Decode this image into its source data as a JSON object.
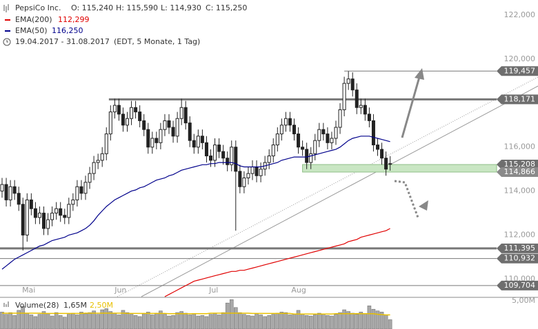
{
  "chart_data": {
    "type": "candlestick",
    "title": "PepsiCo Inc.",
    "ohlc_text": [
      "O: 115,240",
      "H: 115,590",
      "L: 114,930",
      "C: 115,250"
    ],
    "period": "19.04.2017 - 31.08.2017",
    "period_note": "(EDT, 5 Monate, 1 Tag)",
    "ylim": [
      109.2,
      122.69
    ],
    "yticks": [
      {
        "value": 110,
        "label": "110,000"
      },
      {
        "value": 112,
        "label": "112,000"
      },
      {
        "value": 114,
        "label": "114,000"
      },
      {
        "value": 116,
        "label": "116,000"
      },
      {
        "value": 120,
        "label": "120,000"
      },
      {
        "value": 122,
        "label": "122,000"
      }
    ],
    "xticks": [
      {
        "value": 6.4,
        "label": "Mai"
      },
      {
        "value": 28.4,
        "label": "Jun"
      },
      {
        "value": 50.7,
        "label": "Jul"
      },
      {
        "value": 71.1,
        "label": "Aug"
      }
    ],
    "open": [
      114.0,
      114.3,
      113.6,
      114.2,
      113.9,
      113.4,
      112.0,
      113.6,
      113.2,
      112.8,
      113.0,
      112.3,
      112.7,
      113.0,
      113.2,
      112.9,
      112.8,
      113.4,
      113.6,
      114.2,
      113.9,
      114.4,
      114.8,
      115.3,
      115.4,
      115.7,
      116.6,
      117.6,
      117.9,
      117.5,
      117.0,
      117.3,
      117.8,
      117.6,
      117.2,
      116.8,
      116.0,
      116.4,
      116.2,
      116.8,
      117.2,
      116.9,
      116.5,
      117.3,
      117.8,
      117.1,
      116.3,
      116.0,
      116.5,
      116.2,
      115.6,
      115.4,
      116.1,
      115.8,
      115.5,
      115.2,
      116.0,
      114.9,
      114.2,
      114.6,
      114.8,
      115.1,
      114.7,
      115.0,
      115.3,
      115.6,
      116.1,
      116.6,
      117.0,
      117.3,
      117.0,
      116.6,
      116.0,
      115.9,
      115.3,
      115.7,
      116.3,
      116.8,
      116.6,
      116.2,
      116.4,
      116.9,
      117.7,
      118.9,
      119.1,
      118.6,
      117.8,
      117.9,
      117.5,
      117.2,
      116.1,
      115.9,
      115.5,
      115.24
    ],
    "high": [
      114.6,
      114.6,
      114.5,
      114.5,
      114.2,
      113.7,
      113.9,
      113.9,
      113.5,
      113.3,
      113.3,
      113.0,
      113.3,
      113.5,
      113.5,
      113.2,
      113.7,
      113.9,
      114.5,
      114.5,
      114.7,
      115.1,
      115.6,
      115.7,
      116.0,
      116.9,
      117.9,
      118.2,
      118.2,
      117.8,
      117.6,
      118.1,
      118.1,
      117.9,
      117.5,
      117.1,
      116.7,
      116.7,
      117.1,
      117.5,
      117.5,
      117.2,
      117.6,
      118.2,
      118.1,
      117.4,
      116.6,
      116.8,
      116.8,
      116.5,
      115.9,
      116.4,
      116.4,
      116.1,
      115.8,
      116.3,
      116.3,
      115.2,
      114.9,
      115.1,
      115.4,
      115.4,
      115.3,
      115.6,
      115.9,
      116.4,
      116.9,
      117.3,
      117.6,
      117.6,
      117.3,
      116.9,
      116.3,
      116.2,
      116.0,
      116.6,
      117.1,
      117.1,
      116.9,
      116.7,
      117.2,
      118.0,
      119.2,
      119.45,
      119.4,
      118.9,
      118.2,
      118.2,
      117.8,
      117.5,
      116.4,
      116.2,
      115.8,
      115.59
    ],
    "low": [
      113.7,
      113.3,
      113.3,
      113.6,
      113.1,
      111.3,
      111.7,
      112.9,
      112.5,
      112.5,
      112.0,
      112.0,
      112.4,
      112.7,
      112.6,
      112.5,
      112.5,
      113.1,
      113.3,
      113.6,
      113.6,
      114.1,
      114.5,
      115.0,
      115.1,
      115.4,
      116.3,
      117.3,
      117.2,
      116.7,
      116.7,
      117.0,
      117.3,
      116.9,
      116.5,
      115.7,
      115.7,
      115.9,
      115.9,
      116.5,
      116.6,
      116.2,
      116.2,
      117.0,
      116.8,
      116.0,
      115.7,
      115.7,
      115.9,
      115.3,
      115.1,
      115.1,
      115.5,
      115.2,
      114.9,
      114.9,
      112.2,
      113.9,
      113.9,
      114.3,
      114.5,
      114.4,
      114.4,
      114.7,
      115.0,
      115.3,
      115.8,
      116.3,
      116.7,
      116.7,
      116.3,
      115.7,
      115.6,
      115.0,
      115.0,
      115.4,
      116.0,
      116.3,
      115.9,
      115.9,
      116.1,
      116.6,
      117.4,
      118.6,
      118.3,
      117.5,
      117.5,
      117.2,
      116.9,
      115.8,
      115.6,
      115.2,
      114.7,
      114.93
    ],
    "close": [
      114.3,
      113.6,
      114.2,
      113.9,
      113.4,
      112.0,
      113.6,
      113.2,
      112.8,
      113.0,
      112.3,
      112.7,
      113.0,
      113.2,
      112.9,
      112.8,
      113.4,
      113.6,
      114.2,
      113.9,
      114.4,
      114.8,
      115.3,
      115.4,
      115.7,
      116.6,
      117.6,
      117.9,
      117.5,
      117.0,
      117.3,
      117.8,
      117.6,
      117.2,
      116.8,
      116.0,
      116.4,
      116.2,
      116.8,
      117.2,
      116.9,
      116.5,
      117.3,
      117.8,
      117.1,
      116.3,
      116.0,
      116.5,
      116.2,
      115.6,
      115.4,
      116.1,
      115.8,
      115.5,
      115.2,
      116.0,
      114.9,
      114.2,
      114.6,
      114.8,
      115.1,
      114.7,
      115.0,
      115.3,
      115.6,
      116.1,
      116.6,
      117.0,
      117.3,
      117.0,
      116.6,
      116.0,
      115.9,
      115.3,
      115.7,
      116.3,
      116.8,
      116.6,
      116.2,
      116.4,
      116.9,
      117.7,
      118.9,
      119.1,
      118.6,
      117.8,
      117.9,
      117.5,
      117.2,
      116.1,
      115.9,
      115.5,
      115.0,
      115.25
    ],
    "series": [
      {
        "name": "EMA(200)",
        "color": "#e00000",
        "legend_value": "112,299",
        "values": [
          null,
          null,
          null,
          null,
          null,
          null,
          null,
          null,
          null,
          null,
          null,
          null,
          null,
          null,
          null,
          null,
          null,
          null,
          null,
          null,
          null,
          null,
          null,
          null,
          null,
          null,
          null,
          null,
          null,
          null,
          null,
          null,
          null,
          null,
          null,
          null,
          null,
          null,
          null,
          109.2,
          109.3,
          109.4,
          109.5,
          109.6,
          109.7,
          109.8,
          109.9,
          109.95,
          110.0,
          110.05,
          110.1,
          110.15,
          110.2,
          110.25,
          110.3,
          110.35,
          110.35,
          110.4,
          110.4,
          110.45,
          110.5,
          110.55,
          110.6,
          110.65,
          110.7,
          110.75,
          110.8,
          110.85,
          110.9,
          110.95,
          111.0,
          111.05,
          111.1,
          111.15,
          111.2,
          111.25,
          111.3,
          111.35,
          111.4,
          111.45,
          111.5,
          111.55,
          111.6,
          111.7,
          111.75,
          111.8,
          111.9,
          111.95,
          112.0,
          112.05,
          112.1,
          112.15,
          112.2,
          112.299
        ]
      },
      {
        "name": "EMA(50)",
        "color": "#00008b",
        "legend_value": "116,250",
        "values": [
          110.45,
          110.6,
          110.75,
          110.9,
          111.0,
          111.1,
          111.2,
          111.3,
          111.4,
          111.5,
          111.55,
          111.65,
          111.75,
          111.8,
          111.85,
          111.9,
          112.0,
          112.05,
          112.1,
          112.2,
          112.3,
          112.45,
          112.65,
          112.9,
          113.1,
          113.3,
          113.45,
          113.6,
          113.7,
          113.8,
          113.9,
          114.0,
          114.05,
          114.15,
          114.2,
          114.3,
          114.4,
          114.5,
          114.55,
          114.6,
          114.7,
          114.75,
          114.85,
          114.95,
          115.0,
          115.05,
          115.1,
          115.15,
          115.2,
          115.2,
          115.25,
          115.25,
          115.3,
          115.3,
          115.3,
          115.3,
          115.25,
          115.15,
          115.1,
          115.1,
          115.1,
          115.1,
          115.1,
          115.15,
          115.2,
          115.25,
          115.3,
          115.4,
          115.45,
          115.5,
          115.55,
          115.55,
          115.55,
          115.55,
          115.6,
          115.65,
          115.7,
          115.75,
          115.8,
          115.85,
          115.9,
          116.0,
          116.15,
          116.3,
          116.4,
          116.45,
          116.5,
          116.5,
          116.5,
          116.45,
          116.4,
          116.35,
          116.3,
          116.25
        ]
      }
    ],
    "levels": [
      {
        "value": 119.457,
        "label": "119,457"
      },
      {
        "value": 118.171,
        "label": "118,171"
      },
      {
        "value": 115.208,
        "label": "115,208"
      },
      {
        "value": 114.866,
        "label": "114,866"
      },
      {
        "value": 111.395,
        "label": "111,395"
      },
      {
        "value": 110.932,
        "label": "110,932"
      },
      {
        "value": 109.704,
        "label": "109,704"
      }
    ],
    "volume": {
      "name": "Volume(28)",
      "color": "#a8a8a8",
      "legend_values": [
        "1,65M",
        "2,50M"
      ],
      "ylim": [
        0,
        5.6
      ],
      "yticks": [
        {
          "value": 5,
          "label": "5,00M"
        }
      ],
      "values": [
        3.0,
        2.6,
        2.9,
        2.4,
        3.3,
        4.0,
        2.8,
        2.5,
        2.2,
        2.6,
        3.1,
        2.7,
        2.3,
        2.9,
        2.4,
        2.1,
        2.6,
        2.8,
        2.5,
        3.0,
        2.7,
        2.9,
        3.2,
        2.6,
        3.4,
        3.6,
        3.1,
        2.8,
        2.5,
        3.3,
        2.9,
        2.6,
        2.4,
        2.2,
        2.7,
        3.0,
        2.5,
        2.8,
        3.2,
        2.6,
        2.3,
        2.4,
        2.9,
        3.1,
        2.8,
        2.5,
        2.7,
        2.3,
        2.4,
        2.2,
        2.6,
        2.8,
        2.5,
        2.9,
        4.6,
        5.2,
        3.8,
        2.9,
        2.6,
        2.4,
        2.3,
        2.7,
        2.5,
        2.2,
        2.4,
        2.6,
        2.8,
        3.0,
        2.9,
        2.5,
        2.7,
        3.3,
        2.6,
        2.4,
        2.3,
        2.5,
        2.8,
        2.6,
        2.4,
        2.3,
        2.6,
        2.9,
        3.4,
        3.1,
        2.8,
        2.6,
        3.0,
        2.7,
        4.1,
        3.5,
        3.2,
        3.0,
        2.5,
        1.65
      ],
      "ma_color": "#e8c000",
      "ma_values": [
        2.8,
        2.8,
        2.8,
        2.8,
        2.8,
        2.8,
        2.8,
        2.8,
        2.8,
        2.8,
        2.75,
        2.75,
        2.75,
        2.75,
        2.75,
        2.75,
        2.75,
        2.75,
        2.75,
        2.75,
        2.8,
        2.8,
        2.8,
        2.8,
        2.8,
        2.8,
        2.8,
        2.8,
        2.8,
        2.8,
        2.75,
        2.75,
        2.75,
        2.75,
        2.75,
        2.75,
        2.75,
        2.75,
        2.75,
        2.75,
        2.7,
        2.7,
        2.7,
        2.7,
        2.7,
        2.7,
        2.7,
        2.7,
        2.7,
        2.7,
        2.8,
        2.8,
        2.8,
        2.8,
        2.8,
        2.8,
        2.8,
        2.8,
        2.8,
        2.8,
        2.75,
        2.75,
        2.75,
        2.75,
        2.75,
        2.75,
        2.75,
        2.75,
        2.75,
        2.75,
        2.65,
        2.65,
        2.65,
        2.65,
        2.65,
        2.65,
        2.65,
        2.65,
        2.65,
        2.65,
        2.7,
        2.7,
        2.7,
        2.7,
        2.7,
        2.7,
        2.7,
        2.7,
        2.7,
        2.7,
        2.6,
        2.55,
        2.5,
        2.5
      ]
    }
  }
}
